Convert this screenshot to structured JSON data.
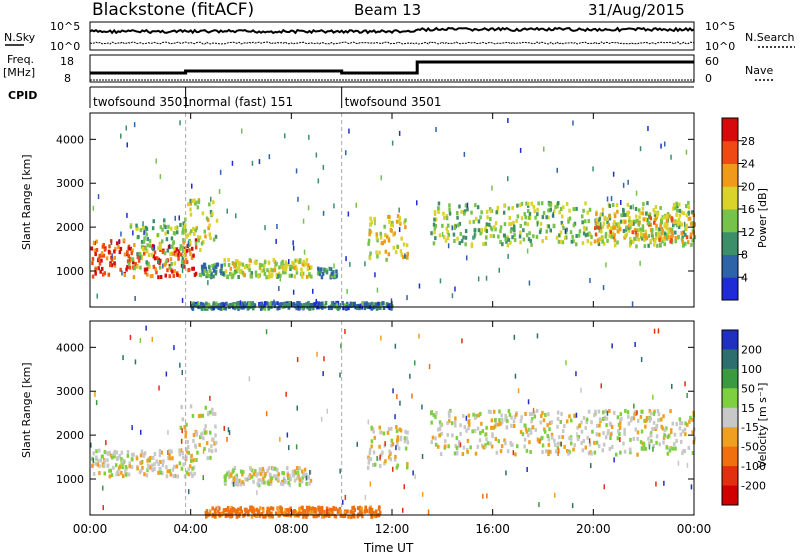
{
  "header": {
    "station": "Blackstone (fitACF)",
    "beam": "Beam 13",
    "date": "31/Aug/2015"
  },
  "top_panels": {
    "nsky_label": "N.Sky",
    "nsearch_label": "N.Search",
    "noise_ticks": [
      "10^5",
      "10^0"
    ],
    "freq_label_line1": "Freq.",
    "freq_label_line2": "[MHz]",
    "freq_ticks": [
      "18",
      "8"
    ],
    "nave_label": "Nave",
    "nave_ticks": [
      "60",
      "0"
    ],
    "cpid_label": "CPID",
    "cpid_segments": [
      {
        "label": "twofsound 3501",
        "start": 0,
        "end": 3.8
      },
      {
        "label": "normal (fast) 151",
        "start": 3.8,
        "end": 10.0
      },
      {
        "label": "twofsound 3501",
        "start": 10.0,
        "end": 24
      }
    ]
  },
  "chart_data": [
    {
      "type": "heatmap",
      "title": "Power",
      "xlabel": "Time UT",
      "ylabel": "Slant Range [km]",
      "xlim": [
        0,
        24
      ],
      "ylim": [
        180,
        4600
      ],
      "x_ticks": [
        "00:00",
        "04:00",
        "08:00",
        "12:00",
        "16:00",
        "20:00",
        "00:00"
      ],
      "y_ticks": [
        1000,
        2000,
        3000,
        4000
      ],
      "colorbar_label": "Power [dB]",
      "colorbar_ticks": [
        4,
        8,
        12,
        16,
        20,
        24,
        28
      ],
      "colorbar_range": [
        0,
        32
      ],
      "colorbar_colors": [
        "#1f2bd6",
        "#2f63a8",
        "#3d8f6a",
        "#76c24a",
        "#d9d32b",
        "#f09a1c",
        "#f04a14",
        "#d60a0a"
      ],
      "regions": [
        {
          "t0": 0.0,
          "t1": 4.2,
          "r0": 900,
          "r1": 1750,
          "power": 26
        },
        {
          "t0": 1.5,
          "t1": 3.8,
          "r0": 1100,
          "r1": 2200,
          "power": 14
        },
        {
          "t0": 3.6,
          "t1": 5.0,
          "r0": 1500,
          "r1": 2700,
          "power": 16
        },
        {
          "t0": 4.3,
          "t1": 5.3,
          "r0": 900,
          "r1": 1200,
          "power": 9
        },
        {
          "t0": 5.3,
          "t1": 8.8,
          "r0": 900,
          "r1": 1300,
          "power": 16
        },
        {
          "t0": 9.0,
          "t1": 9.8,
          "r0": 900,
          "r1": 1100,
          "power": 9
        },
        {
          "t0": 11.0,
          "t1": 12.6,
          "r0": 1300,
          "r1": 2300,
          "power": 18
        },
        {
          "t0": 13.5,
          "t1": 24.0,
          "r0": 1600,
          "r1": 2600,
          "power": 14
        },
        {
          "t0": 20.0,
          "t1": 24.0,
          "r0": 1700,
          "r1": 2400,
          "power": 20
        },
        {
          "t0": 4.0,
          "t1": 12.0,
          "r0": 180,
          "r1": 320,
          "power": 8
        }
      ]
    },
    {
      "type": "heatmap",
      "title": "Velocity",
      "xlabel": "Time UT",
      "ylabel": "Slant Range [km]",
      "xlim": [
        0,
        24
      ],
      "ylim": [
        180,
        4600
      ],
      "x_ticks": [
        "00:00",
        "04:00",
        "08:00",
        "12:00",
        "16:00",
        "20:00",
        "00:00"
      ],
      "y_ticks": [
        1000,
        2000,
        3000,
        4000
      ],
      "colorbar_label": "Velocity [m s⁻¹]",
      "colorbar_ticks": [
        200,
        100,
        50,
        15,
        -15,
        -50,
        -100,
        -200
      ],
      "colorbar_colors": [
        "#2030c0",
        "#2e6e6e",
        "#3a9a40",
        "#7fd040",
        "#c8c8c8",
        "#f0a020",
        "#f07010",
        "#e03010",
        "#d00000"
      ],
      "regions": [
        {
          "t0": 0.0,
          "t1": 4.2,
          "r0": 1100,
          "r1": 1700,
          "velocity": 0
        },
        {
          "t0": 3.5,
          "t1": 5.0,
          "r0": 1500,
          "r1": 2700,
          "velocity": 0
        },
        {
          "t0": 5.3,
          "t1": 8.8,
          "r0": 900,
          "r1": 1300,
          "velocity": 0
        },
        {
          "t0": 11.0,
          "t1": 12.6,
          "r0": 1300,
          "r1": 2300,
          "velocity": 0
        },
        {
          "t0": 13.5,
          "t1": 24.0,
          "r0": 1600,
          "r1": 2600,
          "velocity": 0
        },
        {
          "t0": 4.5,
          "t1": 11.5,
          "r0": 180,
          "r1": 400,
          "velocity": -70
        }
      ]
    }
  ]
}
